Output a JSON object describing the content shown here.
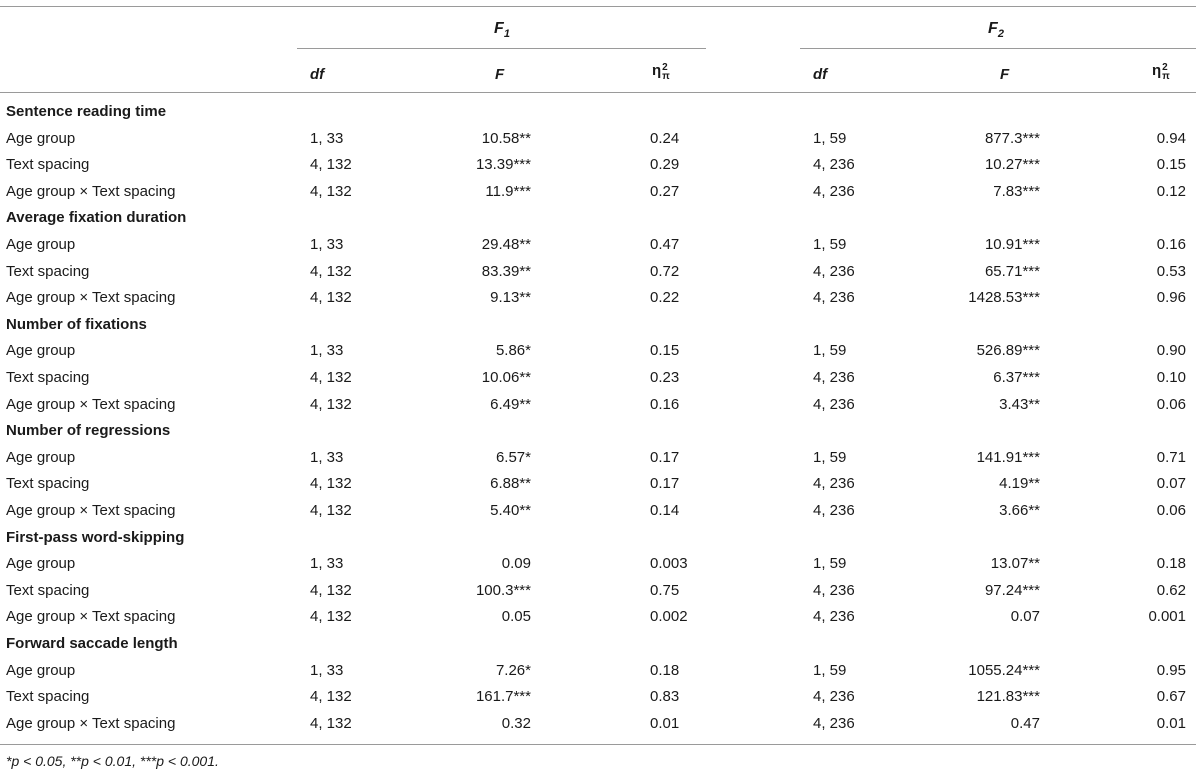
{
  "header": {
    "groups": [
      {
        "label": "F",
        "sub": "1"
      },
      {
        "label": "F",
        "sub": "2"
      }
    ],
    "columns": {
      "df": "df",
      "F": "F",
      "eta_base": "η",
      "eta_sup": "2",
      "eta_sub": "π"
    }
  },
  "sections": [
    {
      "title": "Sentence reading time",
      "rows": [
        {
          "label": "Age group",
          "df1": "1, 33",
          "F1": "10.58**",
          "eta1": "0.24",
          "df2": "1, 59",
          "F2": "877.3***",
          "eta2": "0.94"
        },
        {
          "label": "Text spacing",
          "df1": "4, 132",
          "F1": "13.39***",
          "eta1": "0.29",
          "df2": "4, 236",
          "F2": "10.27***",
          "eta2": "0.15"
        },
        {
          "label": "Age group × Text spacing",
          "df1": "4, 132",
          "F1": "11.9***",
          "eta1": "0.27",
          "df2": "4, 236",
          "F2": "7.83***",
          "eta2": "0.12"
        }
      ]
    },
    {
      "title": "Average fixation duration",
      "rows": [
        {
          "label": "Age group",
          "df1": "1, 33",
          "F1": "29.48**",
          "eta1": "0.47",
          "df2": "1, 59",
          "F2": "10.91***",
          "eta2": "0.16"
        },
        {
          "label": "Text spacing",
          "df1": "4, 132",
          "F1": "83.39**",
          "eta1": "0.72",
          "df2": "4, 236",
          "F2": "65.71***",
          "eta2": "0.53"
        },
        {
          "label": "Age group × Text spacing",
          "df1": "4, 132",
          "F1": "9.13**",
          "eta1": "0.22",
          "df2": "4, 236",
          "F2": "1428.53***",
          "eta2": "0.96"
        }
      ]
    },
    {
      "title": "Number of fixations",
      "rows": [
        {
          "label": "Age group",
          "df1": "1, 33",
          "F1": "5.86*",
          "eta1": "0.15",
          "df2": "1, 59",
          "F2": "526.89***",
          "eta2": "0.90"
        },
        {
          "label": "Text spacing",
          "df1": "4, 132",
          "F1": "10.06**",
          "eta1": "0.23",
          "df2": "4, 236",
          "F2": "6.37***",
          "eta2": "0.10"
        },
        {
          "label": "Age group × Text spacing",
          "df1": "4, 132",
          "F1": "6.49**",
          "eta1": "0.16",
          "df2": "4, 236",
          "F2": "3.43**",
          "eta2": "0.06"
        }
      ]
    },
    {
      "title": "Number of regressions",
      "rows": [
        {
          "label": "Age group",
          "df1": "1, 33",
          "F1": "6.57*",
          "eta1": "0.17",
          "df2": "1, 59",
          "F2": "141.91***",
          "eta2": "0.71"
        },
        {
          "label": "Text spacing",
          "df1": "4, 132",
          "F1": "6.88**",
          "eta1": "0.17",
          "df2": "4, 236",
          "F2": "4.19**",
          "eta2": "0.07"
        },
        {
          "label": "Age group × Text spacing",
          "df1": "4, 132",
          "F1": "5.40**",
          "eta1": "0.14",
          "df2": "4, 236",
          "F2": "3.66**",
          "eta2": "0.06"
        }
      ]
    },
    {
      "title": "First-pass word-skipping",
      "rows": [
        {
          "label": "Age group",
          "df1": "1, 33",
          "F1": "0.09",
          "eta1": "0.003",
          "df2": "1, 59",
          "F2": "13.07**",
          "eta2": "0.18"
        },
        {
          "label": "Text spacing",
          "df1": "4, 132",
          "F1": "100.3***",
          "eta1": "0.75",
          "df2": "4, 236",
          "F2": "97.24***",
          "eta2": "0.62"
        },
        {
          "label": "Age group × Text spacing",
          "df1": "4, 132",
          "F1": "0.05",
          "eta1": "0.002",
          "df2": "4, 236",
          "F2": "0.07",
          "eta2": "0.001"
        }
      ]
    },
    {
      "title": "Forward saccade length",
      "rows": [
        {
          "label": "Age group",
          "df1": "1, 33",
          "F1": "7.26*",
          "eta1": "0.18",
          "df2": "1, 59",
          "F2": "1055.24***",
          "eta2": "0.95"
        },
        {
          "label": "Text spacing",
          "df1": "4, 132",
          "F1": "161.7***",
          "eta1": "0.83",
          "df2": "4, 236",
          "F2": "121.83***",
          "eta2": "0.67"
        },
        {
          "label": "Age group × Text spacing",
          "df1": "4, 132",
          "F1": "0.32",
          "eta1": "0.01",
          "df2": "4, 236",
          "F2": "0.47",
          "eta2": "0.01"
        }
      ]
    }
  ],
  "footnote": "*p < 0.05, **p < 0.01, ***p < 0.001."
}
